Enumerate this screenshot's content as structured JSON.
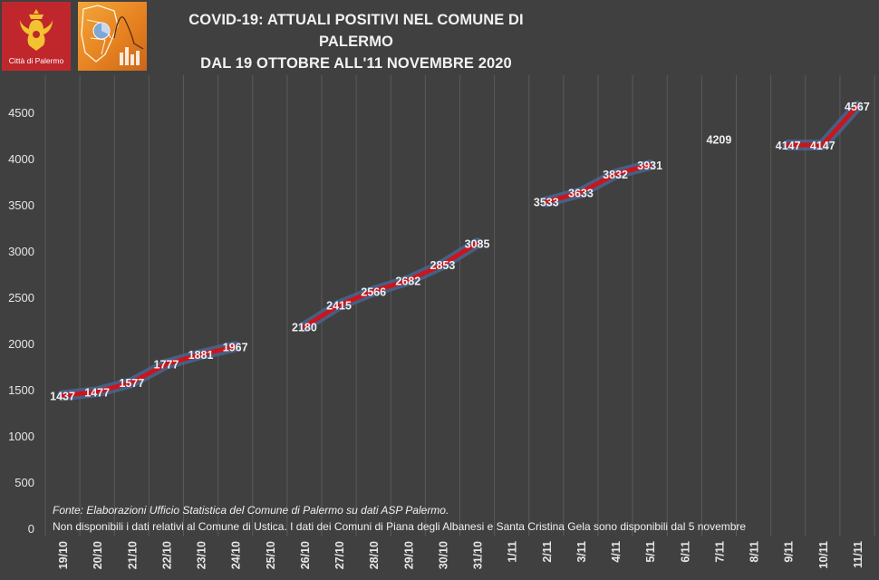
{
  "header": {
    "title_line1": "COVID-19: ATTUALI POSITIVI NEL COMUNE DI PALERMO",
    "title_line2": "DAL 19 OTTOBRE ALL'11 NOVEMBRE 2020",
    "city_logo_text": "Città di Palermo"
  },
  "footnotes": {
    "source": "Fonte: Elaborazioni Ufficio Statistica del Comune di Palermo su dati ASP Palermo.",
    "note": "Non disponibili i dati relativi al Comune di Ustica. I dati dei Comuni di Piana degli Albanesi e Santa Cristina Gela sono disponibili dal 5 novembre"
  },
  "chart_data": {
    "type": "line",
    "title": "COVID-19: ATTUALI POSITIVI NEL COMUNE DI PALERMO",
    "subtitle": "DAL 19 OTTOBRE ALL'11 NOVEMBRE 2020",
    "categories": [
      "19/10",
      "20/10",
      "21/10",
      "22/10",
      "23/10",
      "24/10",
      "25/10",
      "26/10",
      "27/10",
      "28/10",
      "29/10",
      "30/10",
      "31/10",
      "1/11",
      "2/11",
      "3/11",
      "4/11",
      "5/11",
      "6/11",
      "7/11",
      "8/11",
      "9/11",
      "10/11",
      "11/11"
    ],
    "values": [
      1437,
      1477,
      1577,
      1777,
      1881,
      1967,
      null,
      2180,
      2415,
      2566,
      2682,
      2853,
      3085,
      null,
      3533,
      3633,
      3832,
      3931,
      null,
      4209,
      null,
      4147,
      4147,
      4567
    ],
    "ylim": [
      0,
      4700
    ],
    "yticks": [
      0,
      500,
      1000,
      1500,
      2000,
      2500,
      3000,
      3500,
      4000,
      4500
    ],
    "xlabel": "",
    "ylabel": "",
    "grid": "vertical",
    "legend": "none",
    "colors": {
      "line": "#c8161d",
      "glow": "#4a6a9a",
      "label": "#eeeeee",
      "background": "#404040",
      "grid": "#5a5a5a"
    }
  }
}
